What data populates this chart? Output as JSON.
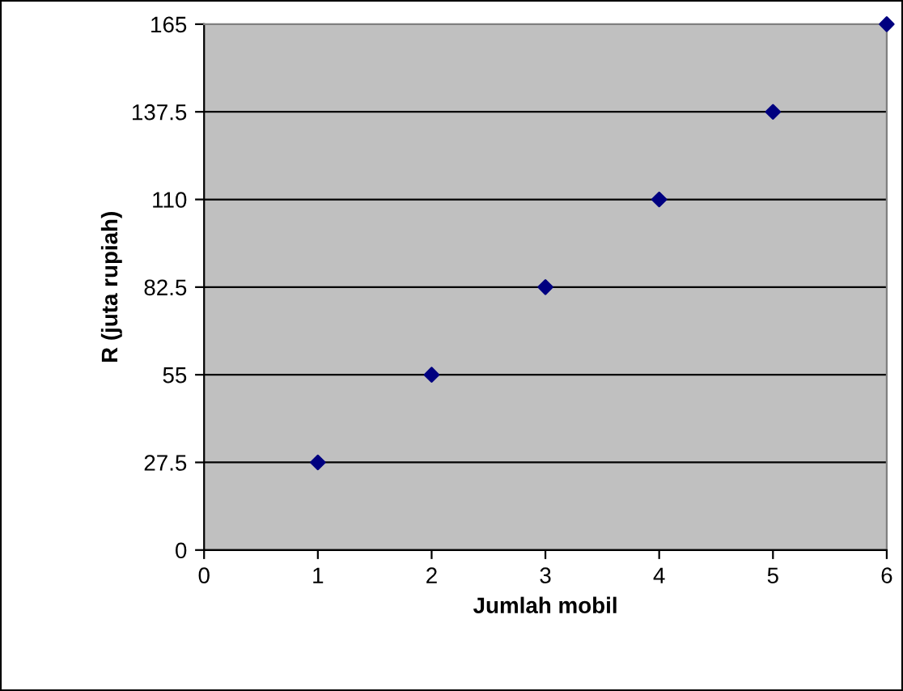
{
  "chart_data": {
    "type": "scatter",
    "xlabel": "Jumlah mobil",
    "ylabel": "R (juta rupiah)",
    "x": [
      1,
      2,
      3,
      4,
      5,
      6
    ],
    "series": [
      {
        "color": "#000080",
        "values": [
          27.5,
          55,
          82.5,
          110,
          137.5,
          165
        ]
      }
    ],
    "xlim": [
      0,
      6
    ],
    "xticks": [
      0,
      1,
      2,
      3,
      4,
      5,
      6
    ],
    "ylim": [
      0,
      165
    ],
    "yticks": [
      0,
      27.5,
      55,
      82.5,
      110,
      137.5,
      165
    ],
    "grid": "y",
    "marker": "diamond",
    "legend": false
  }
}
